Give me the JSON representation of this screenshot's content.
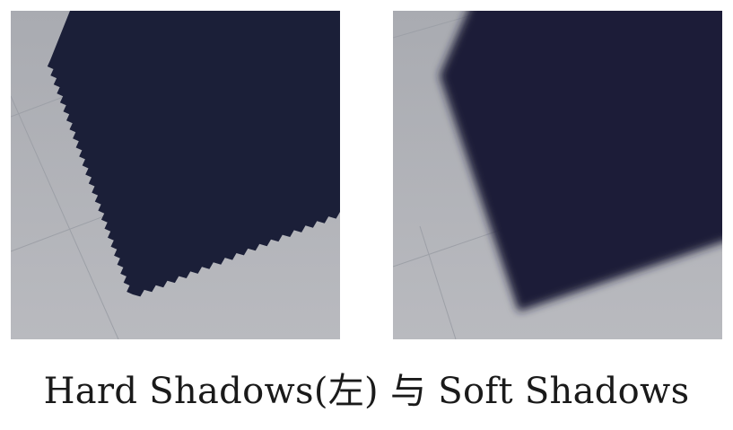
{
  "caption": "Hard Shadows(左) 与 Soft Shadows",
  "panels": [
    {
      "id": "hard",
      "shadow_type": "hard"
    },
    {
      "id": "soft",
      "shadow_type": "soft"
    }
  ],
  "colors": {
    "floor_top": "#aeb0b6",
    "floor_bottom": "#b7b8bd",
    "shadow": "#1b1f38",
    "grid_line": "#9da0a7",
    "caption_text": "#1a1a1a"
  }
}
